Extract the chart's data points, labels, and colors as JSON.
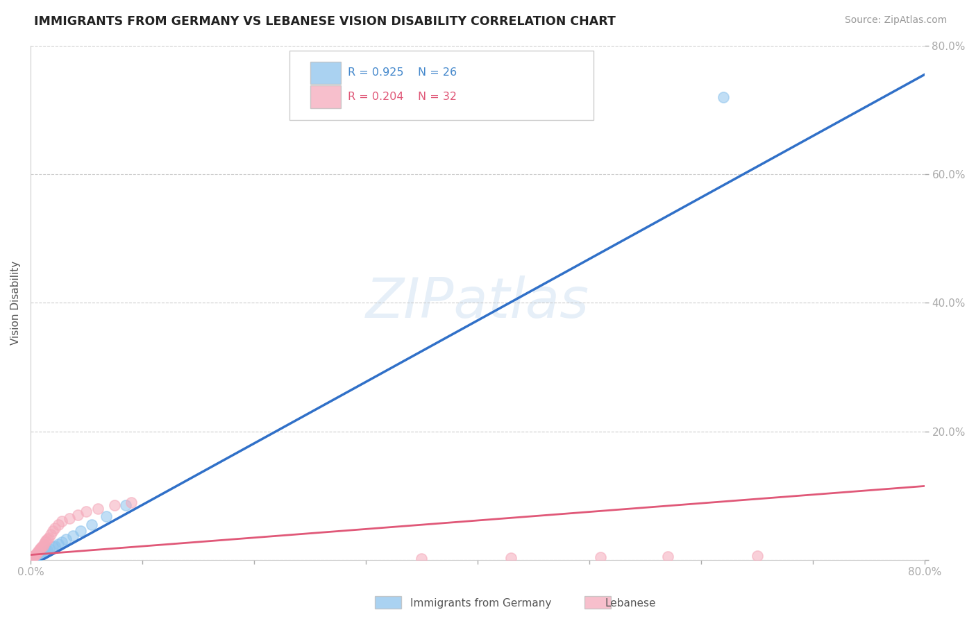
{
  "title": "IMMIGRANTS FROM GERMANY VS LEBANESE VISION DISABILITY CORRELATION CHART",
  "source": "Source: ZipAtlas.com",
  "ylabel": "Vision Disability",
  "xmin": 0.0,
  "xmax": 0.8,
  "ymin": 0.0,
  "ymax": 0.8,
  "germany_R": 0.925,
  "germany_N": 26,
  "lebanese_R": 0.204,
  "lebanese_N": 32,
  "germany_color": "#8EC4ED",
  "lebanese_color": "#F5AABB",
  "germany_line_color": "#3070C8",
  "lebanese_line_color": "#E05878",
  "watermark": "ZIPatlas",
  "germany_scatter_x": [
    0.001,
    0.002,
    0.003,
    0.004,
    0.005,
    0.006,
    0.007,
    0.008,
    0.009,
    0.01,
    0.011,
    0.012,
    0.013,
    0.015,
    0.017,
    0.02,
    0.022,
    0.025,
    0.028,
    0.032,
    0.038,
    0.045,
    0.055,
    0.068,
    0.085,
    0.62
  ],
  "germany_scatter_y": [
    0.001,
    0.002,
    0.003,
    0.004,
    0.005,
    0.006,
    0.007,
    0.008,
    0.009,
    0.01,
    0.011,
    0.012,
    0.013,
    0.015,
    0.017,
    0.02,
    0.022,
    0.025,
    0.028,
    0.032,
    0.038,
    0.045,
    0.055,
    0.068,
    0.085,
    0.72
  ],
  "lebanese_scatter_x": [
    0.001,
    0.002,
    0.003,
    0.004,
    0.005,
    0.006,
    0.007,
    0.008,
    0.009,
    0.01,
    0.011,
    0.012,
    0.013,
    0.014,
    0.015,
    0.016,
    0.018,
    0.02,
    0.022,
    0.025,
    0.028,
    0.035,
    0.042,
    0.05,
    0.06,
    0.075,
    0.09,
    0.35,
    0.43,
    0.51,
    0.57,
    0.65
  ],
  "lebanese_scatter_y": [
    0.002,
    0.004,
    0.006,
    0.008,
    0.01,
    0.012,
    0.014,
    0.016,
    0.018,
    0.02,
    0.022,
    0.025,
    0.028,
    0.03,
    0.032,
    0.035,
    0.04,
    0.045,
    0.05,
    0.055,
    0.06,
    0.065,
    0.07,
    0.075,
    0.08,
    0.085,
    0.09,
    0.002,
    0.003,
    0.004,
    0.005,
    0.006
  ],
  "germany_line_x0": 0.0,
  "germany_line_y0": -0.01,
  "germany_line_x1": 0.8,
  "germany_line_y1": 0.755,
  "lebanese_line_x0": 0.0,
  "lebanese_line_y0": 0.008,
  "lebanese_line_x1": 0.8,
  "lebanese_line_y1": 0.115
}
